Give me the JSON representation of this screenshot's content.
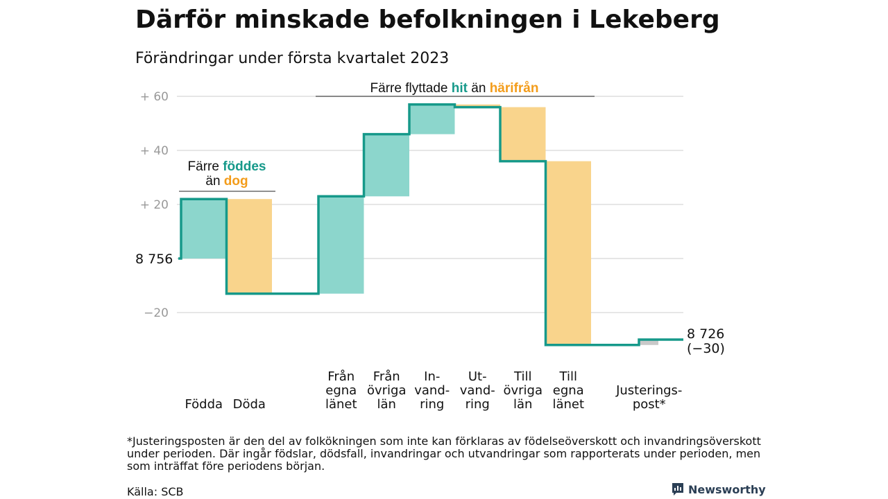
{
  "title": "Därför minskade befolkningen i Lekeberg",
  "subtitle": "Förändringar under första kvartalet 2023",
  "colors": {
    "teal": "#16998a",
    "teal_light": "#8cd6cc",
    "orange_light": "#f9d48c",
    "orange_text": "#f39c1a",
    "adjust": "#c9c9c9",
    "grid": "#dddddd",
    "tick": "#999999"
  },
  "chart_data": {
    "type": "waterfall",
    "title": "Därför minskade befolkningen i Lekeberg",
    "subtitle": "Förändringar under första kvartalet 2023",
    "start_value": 8756,
    "start_label": "8 756",
    "end_value": 8726,
    "end_label": "8 726",
    "end_change_label": "(−30)",
    "ylim": [
      -30,
      60
    ],
    "yticks": [
      {
        "value": 60,
        "label": "+ 60"
      },
      {
        "value": 40,
        "label": "+ 40"
      },
      {
        "value": 20,
        "label": "+ 20"
      },
      {
        "value": 0,
        "label": ""
      },
      {
        "value": -20,
        "label": "−20"
      }
    ],
    "grid": true,
    "steps": [
      {
        "category": [
          "Födda"
        ],
        "delta": 22,
        "kind": "in"
      },
      {
        "category": [
          "Döda"
        ],
        "delta": -35,
        "kind": "out"
      },
      {
        "category": [
          "Från",
          "egna",
          "länet"
        ],
        "delta": 36,
        "kind": "in"
      },
      {
        "category": [
          "Från",
          "övriga",
          "län"
        ],
        "delta": 23,
        "kind": "in"
      },
      {
        "category": [
          "In-",
          "vand-",
          "ring"
        ],
        "delta": 11,
        "kind": "in"
      },
      {
        "category": [
          "Ut-",
          "vand-",
          "ring"
        ],
        "delta": -1,
        "kind": "out"
      },
      {
        "category": [
          "Till",
          "övriga",
          "län"
        ],
        "delta": -20,
        "kind": "out"
      },
      {
        "category": [
          "Till",
          "egna",
          "länet"
        ],
        "delta": -68,
        "kind": "out"
      },
      {
        "category": [
          "Justerings-",
          "post*"
        ],
        "delta": 2,
        "kind": "adjust"
      }
    ],
    "annotations": [
      {
        "parts": [
          {
            "text": "Färre ",
            "style": "plain"
          },
          {
            "text": "föddes",
            "style": "teal"
          }
        ],
        "parts2": [
          {
            "text": "än ",
            "style": "plain"
          },
          {
            "text": "dog",
            "style": "orange"
          }
        ]
      },
      {
        "parts": [
          {
            "text": "Färre flyttade ",
            "style": "plain"
          },
          {
            "text": "hit",
            "style": "teal"
          },
          {
            "text": " än ",
            "style": "plain"
          },
          {
            "text": "härifrån",
            "style": "orange"
          }
        ]
      }
    ]
  },
  "footnote": "*Justeringsposten är den del av folkökningen som inte kan förklaras av födelseöverskott och invandringsöverskott under perioden. Där ingår födslar, dödsfall, invandringar och utvandringar som rapporterats under perioden, men som inträffat före periodens början.",
  "source": "Källa: SCB",
  "brand": "Newsworthy"
}
